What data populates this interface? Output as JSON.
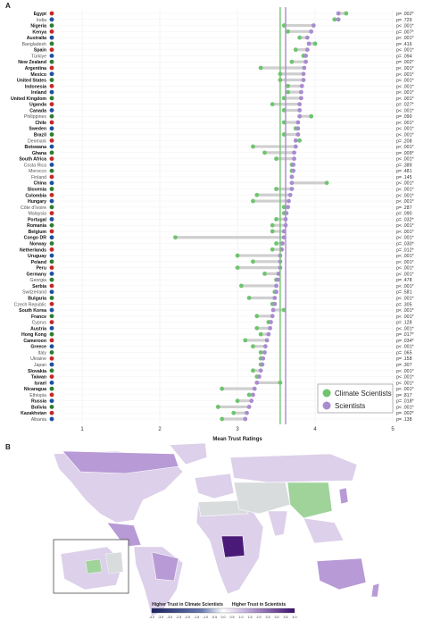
{
  "panel_a_label": "A",
  "panel_b_label": "B",
  "chart_data": {
    "type": "dumbbell",
    "xlabel": "Mean Trust Ratings",
    "xlim": [
      0.7,
      5.0
    ],
    "xticks": [
      "1",
      "2",
      "3",
      "4",
      "5"
    ],
    "grid": true,
    "legend": {
      "placement": "bottom-right",
      "entries": [
        {
          "name": "Climate Scientists",
          "color": "#6fc46f"
        },
        {
          "name": "Scientists",
          "color": "#a98ccf"
        }
      ]
    },
    "reference_lines": [
      {
        "series": "Climate Scientists",
        "value": 3.55,
        "color": "#6fc46f"
      },
      {
        "series": "Scientists",
        "value": 3.62,
        "color": "#a98ccf"
      }
    ],
    "series": [
      {
        "name": "Climate Scientists",
        "color": "#6fc46f"
      },
      {
        "name": "Scientists",
        "color": "#a98ccf"
      }
    ],
    "countries": [
      {
        "name": "Egypt",
        "bold": true,
        "climate": 4.4,
        "scientists": 4.3,
        "p": "p= .002*"
      },
      {
        "name": "India",
        "bold": false,
        "climate": 4.25,
        "scientists": 4.3,
        "p": "p= .729"
      },
      {
        "name": "Nigeria",
        "bold": true,
        "climate": 3.6,
        "scientists": 3.98,
        "p": "p< .001*"
      },
      {
        "name": "Kenya",
        "bold": true,
        "climate": 3.65,
        "scientists": 3.95,
        "p": "p= .007*"
      },
      {
        "name": "Australia",
        "bold": true,
        "climate": 3.8,
        "scientists": 3.9,
        "p": "p< .001*"
      },
      {
        "name": "Bangladesh",
        "bold": false,
        "climate": 4.0,
        "scientists": 3.92,
        "p": "p= .416"
      },
      {
        "name": "Spain",
        "bold": true,
        "climate": 3.75,
        "scientists": 3.9,
        "p": "p< .001*"
      },
      {
        "name": "Türkiye",
        "bold": false,
        "climate": 3.85,
        "scientists": 3.88,
        "p": "p= .094"
      },
      {
        "name": "New Zealand",
        "bold": true,
        "climate": 3.7,
        "scientists": 3.88,
        "p": "p= .002*"
      },
      {
        "name": "Argentina",
        "bold": true,
        "climate": 3.3,
        "scientists": 3.86,
        "p": "p< .001*"
      },
      {
        "name": "Mexico",
        "bold": true,
        "climate": 3.55,
        "scientists": 3.85,
        "p": "p< .001*"
      },
      {
        "name": "United States",
        "bold": true,
        "climate": 3.55,
        "scientists": 3.85,
        "p": "p< .001*"
      },
      {
        "name": "Indonesia",
        "bold": true,
        "climate": 3.65,
        "scientists": 3.83,
        "p": "p< .001*"
      },
      {
        "name": "Ireland",
        "bold": true,
        "climate": 3.65,
        "scientists": 3.82,
        "p": "p< .001*"
      },
      {
        "name": "United Kingdom",
        "bold": true,
        "climate": 3.6,
        "scientists": 3.82,
        "p": "p< .001*"
      },
      {
        "name": "Uganda",
        "bold": true,
        "climate": 3.45,
        "scientists": 3.8,
        "p": "p= .027*"
      },
      {
        "name": "Canada",
        "bold": true,
        "climate": 3.6,
        "scientists": 3.8,
        "p": "p< .001*"
      },
      {
        "name": "Philippines",
        "bold": false,
        "climate": 3.95,
        "scientists": 3.8,
        "p": "p= .090"
      },
      {
        "name": "Chile",
        "bold": true,
        "climate": 3.6,
        "scientists": 3.78,
        "p": "p< .001*"
      },
      {
        "name": "Sweden",
        "bold": true,
        "climate": 3.75,
        "scientists": 3.78,
        "p": "p< .001*"
      },
      {
        "name": "Brazil",
        "bold": true,
        "climate": 3.6,
        "scientists": 3.78,
        "p": "p< .001*"
      },
      {
        "name": "Denmark",
        "bold": false,
        "climate": 3.8,
        "scientists": 3.75,
        "p": "p= .208"
      },
      {
        "name": "Botswana",
        "bold": true,
        "climate": 3.2,
        "scientists": 3.75,
        "p": "p< .001*"
      },
      {
        "name": "Ghana",
        "bold": true,
        "climate": 3.35,
        "scientists": 3.73,
        "p": "p= .009*"
      },
      {
        "name": "South Africa",
        "bold": true,
        "climate": 3.5,
        "scientists": 3.73,
        "p": "p< .001*"
      },
      {
        "name": "Costa Rica",
        "bold": false,
        "climate": 3.7,
        "scientists": 3.72,
        "p": "p= .389"
      },
      {
        "name": "Morocco",
        "bold": false,
        "climate": 3.7,
        "scientists": 3.72,
        "p": "p= .481"
      },
      {
        "name": "Finland",
        "bold": false,
        "climate": 3.7,
        "scientists": 3.7,
        "p": "p= .145"
      },
      {
        "name": "China",
        "bold": true,
        "climate": 4.15,
        "scientists": 3.7,
        "p": "p< .001*"
      },
      {
        "name": "Slovenia",
        "bold": true,
        "climate": 3.5,
        "scientists": 3.7,
        "p": "p< .001*"
      },
      {
        "name": "Colombia",
        "bold": true,
        "climate": 3.25,
        "scientists": 3.68,
        "p": "p< .001*"
      },
      {
        "name": "Hungary",
        "bold": true,
        "climate": 3.2,
        "scientists": 3.66,
        "p": "p< .001*"
      },
      {
        "name": "Côte d'Ivoire",
        "bold": false,
        "climate": 3.6,
        "scientists": 3.65,
        "p": "p= .287"
      },
      {
        "name": "Malaysia",
        "bold": false,
        "climate": 3.6,
        "scientists": 3.63,
        "p": "p= .090"
      },
      {
        "name": "Portugal",
        "bold": true,
        "climate": 3.5,
        "scientists": 3.62,
        "p": "p= .032*"
      },
      {
        "name": "Romania",
        "bold": true,
        "climate": 3.45,
        "scientists": 3.62,
        "p": "p< .001*"
      },
      {
        "name": "Belgium",
        "bold": true,
        "climate": 3.45,
        "scientists": 3.6,
        "p": "p< .001*"
      },
      {
        "name": "Congo DR",
        "bold": true,
        "climate": 2.2,
        "scientists": 3.6,
        "p": "p< .001*"
      },
      {
        "name": "Norway",
        "bold": true,
        "climate": 3.5,
        "scientists": 3.58,
        "p": "p= .030*"
      },
      {
        "name": "Netherlands",
        "bold": true,
        "climate": 3.45,
        "scientists": 3.57,
        "p": "p= .012*"
      },
      {
        "name": "Uruguay",
        "bold": true,
        "climate": 3.0,
        "scientists": 3.55,
        "p": "p< .001*"
      },
      {
        "name": "Poland",
        "bold": true,
        "climate": 3.2,
        "scientists": 3.55,
        "p": "p< .001*"
      },
      {
        "name": "Peru",
        "bold": true,
        "climate": 3.0,
        "scientists": 3.55,
        "p": "p< .001*"
      },
      {
        "name": "Germany",
        "bold": true,
        "climate": 3.35,
        "scientists": 3.53,
        "p": "p< .001*"
      },
      {
        "name": "Georgia",
        "bold": false,
        "climate": 3.5,
        "scientists": 3.52,
        "p": "p= .478"
      },
      {
        "name": "Serbia",
        "bold": true,
        "climate": 3.05,
        "scientists": 3.5,
        "p": "p< .001*"
      },
      {
        "name": "Switzerland",
        "bold": false,
        "climate": 3.48,
        "scientists": 3.5,
        "p": "p= .581"
      },
      {
        "name": "Bulgaria",
        "bold": true,
        "climate": 3.15,
        "scientists": 3.48,
        "p": "p< .001*"
      },
      {
        "name": "Czech Republic",
        "bold": false,
        "climate": 3.45,
        "scientists": 3.48,
        "p": "p= .305"
      },
      {
        "name": "South Korea",
        "bold": true,
        "climate": 3.6,
        "scientists": 3.46,
        "p": "p< .001*"
      },
      {
        "name": "France",
        "bold": true,
        "climate": 3.25,
        "scientists": 3.45,
        "p": "p< .001*"
      },
      {
        "name": "Cyprus",
        "bold": false,
        "climate": 3.4,
        "scientists": 3.43,
        "p": "p= .128"
      },
      {
        "name": "Austria",
        "bold": true,
        "climate": 3.25,
        "scientists": 3.42,
        "p": "p< .001*"
      },
      {
        "name": "Hong Kong",
        "bold": true,
        "climate": 3.3,
        "scientists": 3.4,
        "p": "p= .017*"
      },
      {
        "name": "Cameroon",
        "bold": true,
        "climate": 3.1,
        "scientists": 3.38,
        "p": "p= .034*"
      },
      {
        "name": "Greece",
        "bold": true,
        "climate": 3.2,
        "scientists": 3.36,
        "p": "p< .001*"
      },
      {
        "name": "Italy",
        "bold": false,
        "climate": 3.3,
        "scientists": 3.35,
        "p": "p= .065"
      },
      {
        "name": "Ukraine",
        "bold": false,
        "climate": 3.3,
        "scientists": 3.33,
        "p": "p= .158"
      },
      {
        "name": "Japan",
        "bold": false,
        "climate": 3.3,
        "scientists": 3.32,
        "p": "p= .307"
      },
      {
        "name": "Slovakia",
        "bold": true,
        "climate": 3.2,
        "scientists": 3.3,
        "p": "p< .001*"
      },
      {
        "name": "Taiwan",
        "bold": true,
        "climate": 3.25,
        "scientists": 3.28,
        "p": "p< .001*"
      },
      {
        "name": "Israel",
        "bold": true,
        "climate": 3.55,
        "scientists": 3.25,
        "p": "p< .001*"
      },
      {
        "name": "Nicaragua",
        "bold": true,
        "climate": 2.8,
        "scientists": 3.22,
        "p": "p< .001*"
      },
      {
        "name": "Ethiopia",
        "bold": false,
        "climate": 3.15,
        "scientists": 3.2,
        "p": "p= .817"
      },
      {
        "name": "Russia",
        "bold": true,
        "climate": 3.0,
        "scientists": 3.18,
        "p": "p= .018*"
      },
      {
        "name": "Bolivia",
        "bold": true,
        "climate": 2.75,
        "scientists": 3.15,
        "p": "p< .001*"
      },
      {
        "name": "Kazakhstan",
        "bold": true,
        "climate": 2.95,
        "scientists": 3.12,
        "p": "p= .002*"
      },
      {
        "name": "Albania",
        "bold": false,
        "climate": 2.8,
        "scientists": 3.1,
        "p": "p= .138"
      }
    ]
  },
  "map": {
    "colorbar_label_left": "Higher Trust in Climate Scientists",
    "colorbar_label_right": "Higher Trust in Scientists",
    "colorbar_ticks": [
      "-4.0",
      "-3.5",
      "-3.0",
      "-2.5",
      "-2.0",
      "-1.5",
      "-1.0",
      "-0.5",
      "0.0",
      "0.5",
      "1.0",
      "1.5",
      "2.0",
      "2.5",
      "3.0",
      "3.5",
      "4.0"
    ],
    "colors": {
      "no_data": "#d9dcdd",
      "green": "#9fd39a",
      "light_purple": "#ddd0ea",
      "mid_purple": "#b79ad6",
      "dark_purple": "#4a1a78",
      "ocean": "#ffffff"
    }
  }
}
